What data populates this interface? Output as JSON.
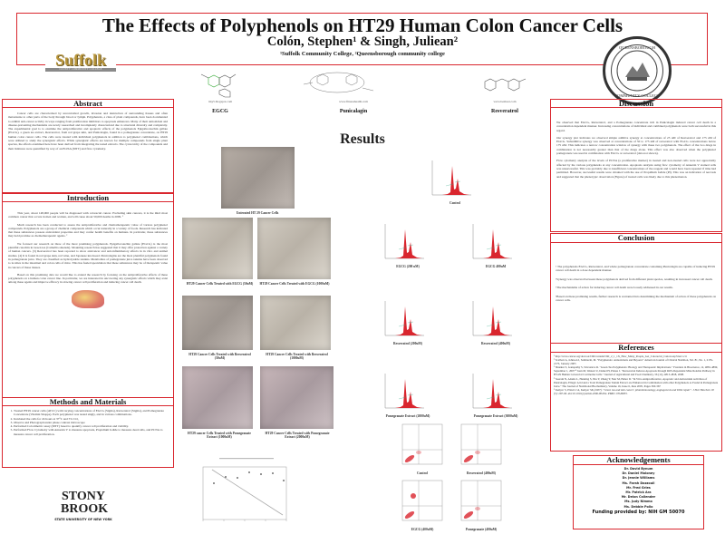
{
  "header": {
    "title": "The Effects of Polyphenols on HT29 Human Colon Cancer Cells",
    "authors": "Colón, Stephen¹ & Singh, Juliean²",
    "affiliations": "¹Suffolk Community College, ²Queensborough community college",
    "left_logo": "Suffolk",
    "left_logo_sub": "COUNTY COMMUNITY COLLEGE",
    "right_logo": "Queensborough Community College seal"
  },
  "molecules": [
    {
      "name": "EGCG",
      "source": "tiny5.blogspot.com"
    },
    {
      "name": "Punicalagin",
      "source": "www.fitnesshealth.com"
    },
    {
      "name": "Resveratrol",
      "source": "www.benbest.com"
    }
  ],
  "abstract": {
    "heading": "Abstract",
    "text": "Cancer cells are characterized by uncontrolled growth, invasion and destruction of surrounding tissues and often metastasize to other parts of the body through blood or lymph. Polyphenols, a class of plant compounds, have been documented to exhibit anti-cancer activity in ways ranging from proliferation inhibitors to apoptosis enhancers. Many of their antioxidant and disease-preventing mechanisms are newly researched and incompletely characterized due to structural diversity and complexity. The experimental goal is to examine the antiproliferative and apoptotic effects of the polyphenols Epigallocatechin gallate (EGCG), a green tea extract, Resveratrol, from red grape skin, and Punicalagin, found in a pomegranate concentrate, on HT29 human colon cancer cells. The cells were treated with individual polyphenols in addition to polyphenol combinations, which were utilized to study the synergistic effects. While synergistic effects are known for multiple compounds from single plant species, the effects examined here have been derived from integrating the tested extracts. The cytotoxicity of the compounds and their mixtures were quantified by way of an ELISA (MTT) and flow cytometry."
  },
  "introduction": {
    "heading": "Introduction",
    "paragraphs": [
      "This year, about 148,000 people will be diagnosed with colorectal cancer. Excluding skin cancers, it is the third most common cancer that occurs in men and women, and will cause about 50,000 deaths in 2009. ¹",
      "Much research has been conducted to assess the antiproliferative and chemotherapeutic value of various polyphenol compounds. Polyphenols are a group of chemical compounds which occur naturally in a variety of foods. Research has indicated that these substances possess antioxidant properties and may confer health benefits on humans. In particular, these substances may hold promise as chemotherapeutic agents. ²",
      "We focused our research on three of the most promising polyphenols. Epigallocatechin gallate (EGCG) is the most plentiful catechin in Green tea (Camellia sinensis). Mounting research has suggested that it may offer protection against a variety of human cancers. (3) Resveratrol has been reported to show anticancer and anti-inflammatory effects in in vitro and animal studies. (4) It is found in red grape skin, red wine, and Japanese knotweed. Punicalagins are the most plentiful polyphenols found in pomegranate juice. They are classified as hydrolysable tannins. Metabolites of pomegranate juice tannins have been observed to localize in the intestinal and colon cells of mice. This has fueled speculation that these substances may be of therapeutic value in cancers of these tissues.",
      "Based on this promising data we would like to extend the research by focusing on the antiproliferative effects of these polyphenols on a human colon cancer line. In particular, we are interested in uncovering any synergistic effects which may exist among these agents and improve efficacy in slowing cancer cell proliferation and inducing cancer cell death."
    ]
  },
  "methods": {
    "heading": "Methods and Materials",
    "steps": [
      "Treated HT29 cancer cells (ATCC) with varying concentrations of EGCG (Sigma), Resveratrol (Sigma), and Pomegranate Concentrate (Vitamin Shoppe). Each polyphenol was tested singly, and in various combinations.",
      "Incubated the cells for 24 hours at 37°C and 5% CO₂",
      "Observe and Photograph under phase contrast microscope",
      "Performed Colorimetric assay (MTT) based to quantify cancer cell proliferation and viability.",
      "Performed Flow Cytometry with Annexin V to measure apoptosis, Propidium Iodide to measure dead cells, and PCNA to measure cancer cell proliferation."
    ]
  },
  "bottom_logo": {
    "name": "STONY BROOK",
    "sub": "STATE UNIVERSITY OF NEW YORK"
  },
  "results": {
    "heading": "Results",
    "micrographs": [
      "Untreated HT 29 Cancer Cells",
      "HT29 Cancer Cells Treated with EGCG (50uM)",
      "HT29 Cancer Cells Treated with EGCG (1000uM)",
      "HT29 Cancer Cells Treated with Resveratrol (50uM)",
      "HT29 Cancer Cells Treated with Resveratrol (1000uM)",
      "HT29 cancer Cells Treated with Pomegranate Extract (1000uM)",
      "HT29 Cancer Cells Treated with Pomegranate Extract (2000uM)"
    ],
    "histograms": [
      "Control",
      "EGCG (200 uM)",
      "EGCG 400uM",
      "Resveratrol (200uM)",
      "Resveratrol (400uM)",
      "Pomegranate Extract (2000uM)",
      "Pomegranate Extract (3000uM)"
    ],
    "dotplots": [
      "Control",
      "Resveratrol (400uM)",
      "EGCG (400uM)",
      "Pomegranate (400uM)"
    ],
    "accent_color": "#d9262e"
  },
  "discussion": {
    "heading": "Discussion",
    "paragraphs": [
      "We observed that EGCG, Resveratrol, and a Pomegranate concentrate rich in Punicalagin induced cancer cell death in a concentration dependent manner. Increasing concentrations of individual and combined polyphenols were both successful in this regard.",
      "Our synergy plot indicates we observed simple additive synergy at concentrations of 25 uM of Resveratrol and 175 uM of EGCG. Subadditive synergy was observed at concentrations of 50 to 175 uM of resveratrol with EGCG concentrations below 175 uM. This indicates a narrow concentration window of synergy with these two polyphenols. The effect of the two drugs in combination is not necessarily greater than that of the drugs alone. This effect was also observed when the polyphenol pomegranate was used in combination with EGCG or resveratrol (data not shown).",
      "Flow cytometry analysis of the levels of PCNA (a proliferative marker) in treated and non-treated cells were not appreciably affected by the various polyphenols at any concentration. Apoptosis analysis using flow cytometry of Annexin V stained cells was unsuccessful. This was probably due to insufficient concentrations of the reagent and would have been repeated if time had permitted. However, successful results were obtained with the use of Propidium Iodide (PI). This was an indication of necrosis and suggested that the phenotypic observation (Figure) of treated cells was likely due to this phenomenon."
    ]
  },
  "conclusion": {
    "heading": "Conclusion",
    "bullets": [
      "• The polyphenols EGCG, Resveratrol, and whole pomegranate concentrate containing Punicalagin are capable of inducing HT29 cancer cell death in a dose dependent manner.",
      "•Synergy was observed between these polyphenols derived from different plant species, resulting in increased cancer cell death.",
      "•The mechanisms of action for inducing cancer cell death were loosely addressed in our results.",
      "•Based on these promising results, further research is warranted into determining the mechanism of action of these polyphenols on cancer cells."
    ]
  },
  "references": {
    "heading": "References",
    "items": [
      "¹ http://www.cancer.org/docroot/CRI/content/CRI_2_1_1X_How_Many_People_Get_Colorectal_Cancer.asp?rnav=cri",
      "² Scalbert A, Johnson I, Saltmarsh, M. \"Polyphenols: Antioxidants and Beyond.\" American Journal of Clinical Nutrition, Vol. 81, No. 1, 215S-217S, January 2005",
      "³ Shankar S, Ganapathy S, Srivastava R. \"Green Tea Polyphenols: Biology and Therapeutic Implications.\" Frontiers in Bioscience, 12, 4881-4899, September 1, 2007 ⁴ Juan M, Wenzel U, Daniel H, Planas J. \"Resveratrol Induces Apoptosis through ROS-Dependent Mitochondria Pathway in HT-29 Human Colorectal Carcinoma Cells.\" Journal of Agricultural and Food Chemistry, 56 (12), 4813-4818, 2008.",
      "⁵ Seeram N, Adams L, Henning S, Niu Y, Zhang Y, Nair M, Heber D. \"In Vitro Antiproliferative, Apoptotic and Antioxidant Activities of Punicalagin, Ellagic Acid and a Total Pomegranate Tannin Extract are Enhanced in Combination with other Polyphenols as Found in Pomegranate Juice.\" The Journal of Nutritional Biochemistry, Volume 16, Issue 6, June 2005, Pages 360-367",
      "⁶ Katiyar S, Elmets CA, Katiyar SK (2007). \"Green tea and skin cancer: photoimmunology, angiogenesis and DNA repair\". J Nutr Biochem 18 (5): 287-96. doi:10.1016/j.jnutbio.2006.08.004. PMID 17049833."
    ]
  },
  "acknowledgements": {
    "heading": "Acknowledgements",
    "names": [
      "Dr. David Bynum",
      "Dr. Daniel Moloney",
      "Dr. Jennie Williams",
      "Ms. Farah Dazzouli",
      "Mr. Fred Gries",
      "Mr. Patrick Ara",
      "Mr. Delon Callender",
      "Ms. Judy Nimmo",
      "Ms. Debbie Pollo"
    ],
    "funding": "Funding provided by: NIH GM 50070"
  }
}
